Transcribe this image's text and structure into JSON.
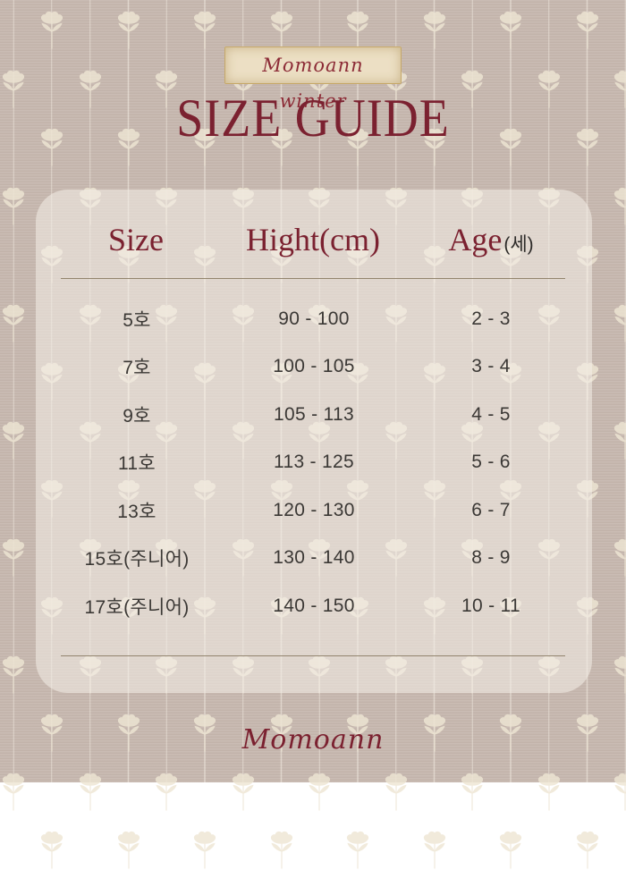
{
  "brand": {
    "badge_label": "Momoann winter",
    "title": "SIZE GUIDE",
    "footer_logo": "Momoann"
  },
  "table": {
    "headers": [
      {
        "label": "Size",
        "suffix": ""
      },
      {
        "label": "Hight(cm)",
        "suffix": ""
      },
      {
        "label": "Age",
        "suffix": "(세)"
      }
    ],
    "rows": [
      {
        "size": "5호",
        "height_cm": "90 - 100",
        "age": "2 - 3"
      },
      {
        "size": "7호",
        "height_cm": "100 - 105",
        "age": "3 - 4"
      },
      {
        "size": "9호",
        "height_cm": "105 - 113",
        "age": "4 - 5"
      },
      {
        "size": "11호",
        "height_cm": "113 - 125",
        "age": "5 - 6"
      },
      {
        "size": "13호",
        "height_cm": "120 - 130",
        "age": "6 - 7"
      },
      {
        "size": "15호(주니어)",
        "height_cm": "130 - 140",
        "age": "8 - 9"
      },
      {
        "size": "17호(주니어)",
        "height_cm": "140 - 150",
        "age": "10 - 11"
      }
    ]
  },
  "colors": {
    "background": "#c6b7ae",
    "panel": "rgba(244,239,232,0.55)",
    "accent_maroon": "#7b2130",
    "body_text": "#3b3835",
    "rule_line": "#8a7b63",
    "badge_paper": "#ecdfc4",
    "flower_cream": "#eee6d4"
  }
}
